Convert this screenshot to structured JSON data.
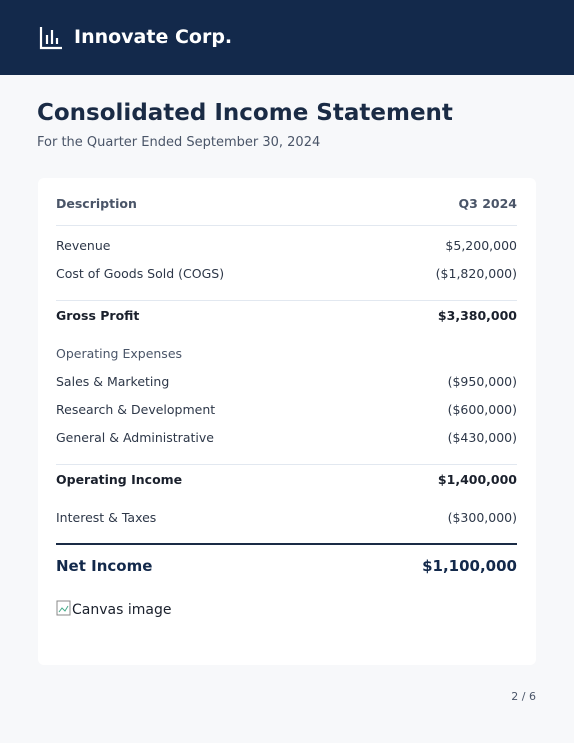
{
  "header": {
    "brand": "Innovate Corp."
  },
  "document": {
    "title": "Consolidated Income Statement",
    "subtitle": "For the Quarter Ended September 30, 2024"
  },
  "table": {
    "columns": [
      "Description",
      "Q3 2024"
    ],
    "rows": [
      [
        "Revenue",
        "$5,200,000"
      ],
      [
        "Cost of Goods Sold (COGS)",
        "($1,820,000)"
      ],
      [
        "Gross Profit",
        "$3,380,000"
      ],
      [
        "Operating Expenses",
        null
      ],
      [
        "Sales & Marketing",
        "($950,000)"
      ],
      [
        "Research & Development",
        "($600,000)"
      ],
      [
        "General & Administrative",
        "($430,000)"
      ],
      [
        "Operating Income",
        "$1,400,000"
      ],
      [
        "Interest & Taxes",
        "($300,000)"
      ],
      [
        "Net Income",
        "$1,100,000"
      ]
    ]
  },
  "image_alt": "Canvas image",
  "footer": {
    "page": "2 / 6"
  }
}
